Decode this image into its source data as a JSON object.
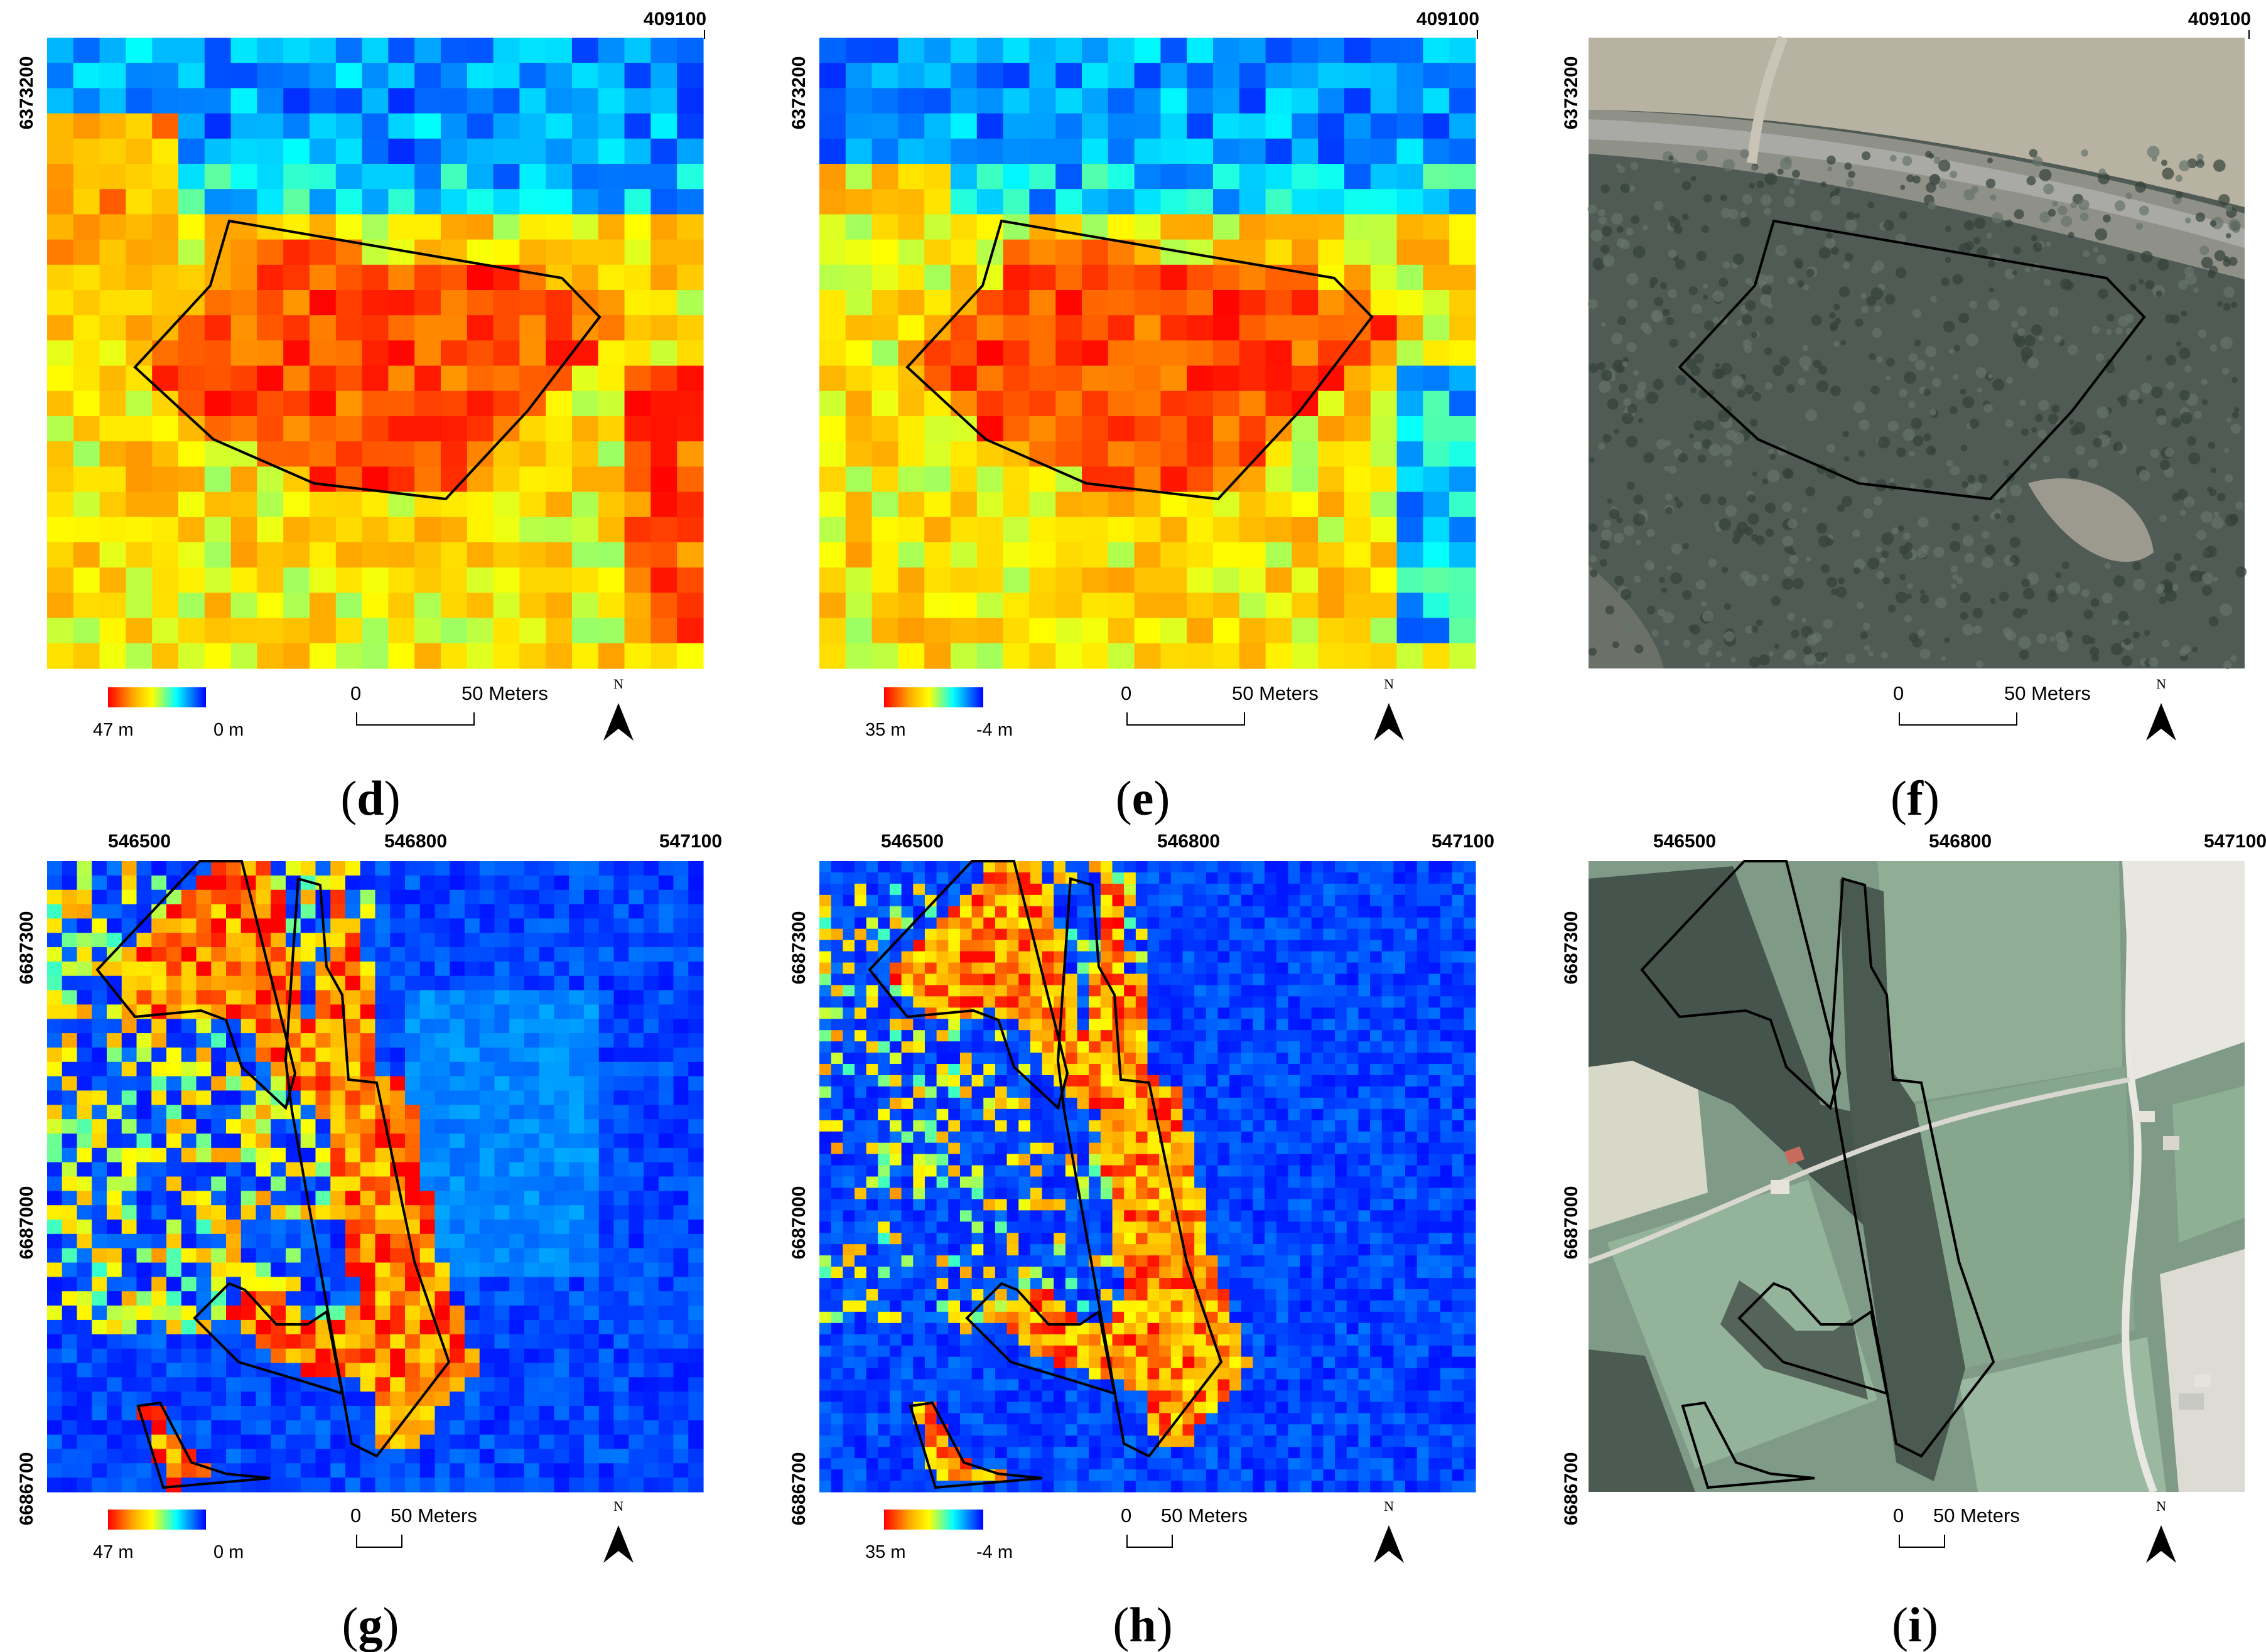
{
  "colors": {
    "high": "#ff0000",
    "mid_high": "#ffa500",
    "mid": "#ffff00",
    "mid_low": "#00ffff",
    "low": "#0000ff",
    "outline": "#000000"
  },
  "scale_unit": "50 Meters",
  "scale_zero": "0",
  "north_symbol": "N",
  "north_icon": "north-arrow-icon",
  "panels": [
    {
      "id": "d",
      "letter": "d",
      "kind": "raster",
      "top_tick": "409100",
      "left_tick": "6373200",
      "legend_max": "47 m",
      "legend_min": "0 m",
      "scale_zero": "0",
      "scale_label": "50 Meters"
    },
    {
      "id": "e",
      "letter": "e",
      "kind": "raster",
      "top_tick": "409100",
      "left_tick": "6373200",
      "legend_max": "35 m",
      "legend_min": "-4 m",
      "scale_zero": "0",
      "scale_label": "50 Meters"
    },
    {
      "id": "f",
      "letter": "f",
      "kind": "aerial",
      "top_tick": "409100",
      "left_tick": "6373200",
      "scale_zero": "0",
      "scale_label": "50 Meters"
    },
    {
      "id": "g",
      "letter": "g",
      "kind": "raster",
      "top_ticks": [
        "546500",
        "546800",
        "547100"
      ],
      "left_ticks": [
        "6687300",
        "6687000",
        "6686700"
      ],
      "legend_max": "47 m",
      "legend_min": "0 m",
      "scale_zero": "0",
      "scale_label": "50 Meters"
    },
    {
      "id": "h",
      "letter": "h",
      "kind": "raster",
      "top_ticks": [
        "546500",
        "546800",
        "547100"
      ],
      "left_ticks": [
        "6687300",
        "6687000",
        "6686700"
      ],
      "legend_max": "35 m",
      "legend_min": "-4 m",
      "scale_zero": "0",
      "scale_label": "50 Meters"
    },
    {
      "id": "i",
      "letter": "i",
      "kind": "aerial",
      "top_ticks": [
        "546500",
        "546800",
        "547100"
      ],
      "left_ticks": [
        "6687300",
        "6687000",
        "6686700"
      ],
      "scale_zero": "0",
      "scale_label": "50 Meters"
    }
  ]
}
